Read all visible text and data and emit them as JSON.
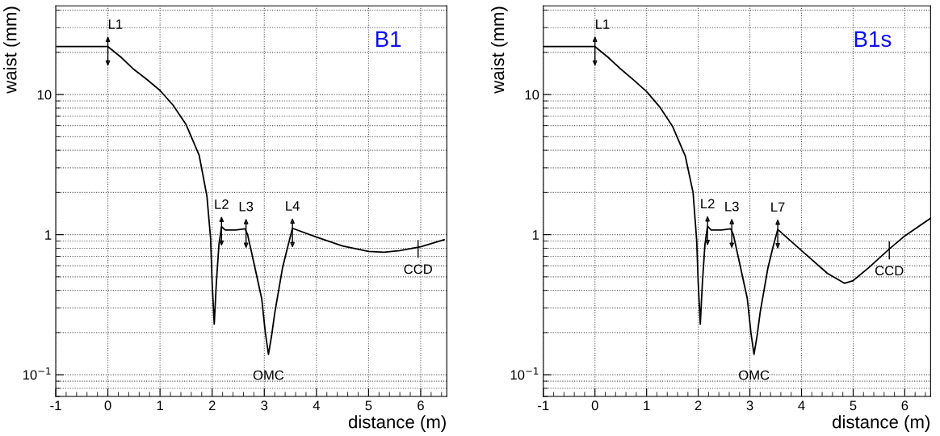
{
  "chart_data": [
    {
      "type": "line",
      "title": "B1",
      "xlabel": "distance (m)",
      "ylabel": "waist (mm)",
      "log": "y",
      "grid": true,
      "xlim": [
        -1,
        6.5
      ],
      "ylim": [
        0.07,
        43
      ],
      "xticks": [
        -1,
        0,
        1,
        2,
        3,
        4,
        5,
        6
      ],
      "yticks": [
        {
          "value": 0.1,
          "label": "10$^{−1}$"
        },
        1,
        10
      ],
      "series": [
        {
          "color": "#000000",
          "x": [
            -1,
            0,
            0.25,
            0.5,
            0.75,
            1,
            1.25,
            1.5,
            1.75,
            1.9,
            1.97,
            2.0,
            2.04,
            2.08,
            2.13,
            2.18,
            2.25,
            2.45,
            2.63,
            2.68,
            2.8,
            2.95,
            3.02,
            3.08,
            3.14,
            3.2,
            3.35,
            3.45,
            3.54,
            4,
            4.5,
            5,
            5.3,
            5.6,
            6,
            6.45
          ],
          "values": [
            22,
            22,
            18.5,
            15.1,
            12.8,
            10.7,
            8.4,
            6.1,
            3.7,
            1.88,
            0.94,
            0.45,
            0.23,
            0.45,
            0.85,
            1.14,
            1.08,
            1.08,
            1.1,
            1.0,
            0.63,
            0.35,
            0.2,
            0.14,
            0.19,
            0.275,
            0.58,
            0.82,
            1.11,
            0.96,
            0.83,
            0.76,
            0.75,
            0.77,
            0.82,
            0.92
          ]
        }
      ],
      "annotations": [
        {
          "text": "L1",
          "x": 0,
          "y": 22
        },
        {
          "text": "L2",
          "x": 2.18,
          "y": 1.14
        },
        {
          "text": "L3",
          "x": 2.65,
          "y": 1.1
        },
        {
          "text": "L4",
          "x": 3.54,
          "y": 1.11
        },
        {
          "text": "OMC",
          "x": 3.08,
          "y": 0.14
        },
        {
          "text": "CCD",
          "x": 5.95,
          "y": 0.81
        }
      ]
    },
    {
      "type": "line",
      "title": "B1s",
      "xlabel": "distance (m)",
      "ylabel": "waist (mm)",
      "log": "y",
      "grid": true,
      "xlim": [
        -1,
        6.5
      ],
      "ylim": [
        0.07,
        43
      ],
      "xticks": [
        -1,
        0,
        1,
        2,
        3,
        4,
        5,
        6
      ],
      "yticks": [
        {
          "value": 0.1,
          "label": "10$^{−1}$"
        },
        1,
        10
      ],
      "series": [
        {
          "color": "#000000",
          "x": [
            -1,
            0,
            0.25,
            0.5,
            0.75,
            1,
            1.25,
            1.5,
            1.75,
            1.9,
            1.97,
            2.0,
            2.04,
            2.08,
            2.13,
            2.18,
            2.25,
            2.45,
            2.63,
            2.68,
            2.8,
            2.95,
            3.02,
            3.08,
            3.14,
            3.2,
            3.35,
            3.45,
            3.54,
            4,
            4.5,
            4.83,
            5,
            5.3,
            5.7,
            6,
            6.5
          ],
          "values": [
            22,
            22,
            18.5,
            15.2,
            12.7,
            10.5,
            8.2,
            5.95,
            3.63,
            2.0,
            0.91,
            0.45,
            0.23,
            0.45,
            0.85,
            1.15,
            1.08,
            1.08,
            1.1,
            1.0,
            0.63,
            0.35,
            0.2,
            0.14,
            0.19,
            0.28,
            0.58,
            0.82,
            1.09,
            0.77,
            0.53,
            0.45,
            0.47,
            0.58,
            0.79,
            0.98,
            1.31
          ]
        }
      ],
      "annotations": [
        {
          "text": "L1",
          "x": 0,
          "y": 22
        },
        {
          "text": "L2",
          "x": 2.18,
          "y": 1.15
        },
        {
          "text": "L3",
          "x": 2.65,
          "y": 1.1
        },
        {
          "text": "L7",
          "x": 3.54,
          "y": 1.09
        },
        {
          "text": "OMC",
          "x": 3.08,
          "y": 0.14
        },
        {
          "text": "CCD",
          "x": 5.7,
          "y": 0.79
        }
      ]
    }
  ]
}
